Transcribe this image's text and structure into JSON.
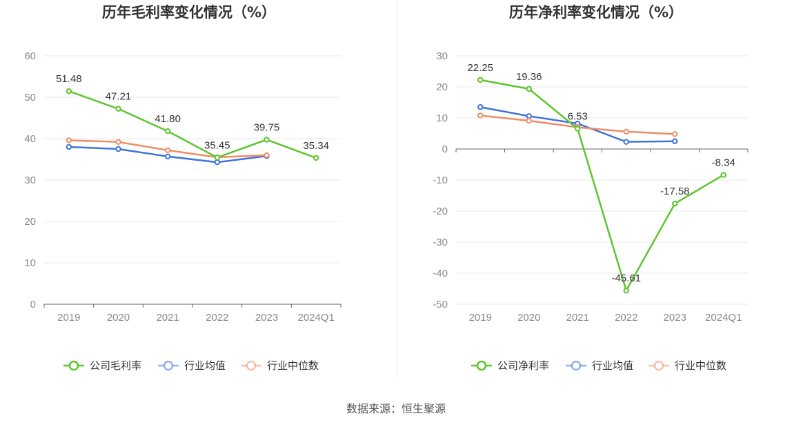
{
  "source": "数据来源：恒生聚源",
  "colors": {
    "company": "#5cc52c",
    "average": "#3e72dc",
    "median": "#f08c64",
    "grid": "#e6e8ef",
    "axis": "#666666"
  },
  "chart_data": [
    {
      "type": "line",
      "title": "历年毛利率变化情况（%）",
      "categories": [
        "2019",
        "2020",
        "2021",
        "2022",
        "2023",
        "2024Q1"
      ],
      "ylim": [
        0,
        60
      ],
      "yticks": [
        0,
        10,
        20,
        30,
        40,
        50,
        60
      ],
      "grid": true,
      "legend_position": "bottom",
      "series": [
        {
          "name": "公司毛利率",
          "key": "company",
          "values": [
            51.48,
            47.21,
            41.8,
            35.45,
            39.75,
            35.34
          ],
          "labels": [
            "51.48",
            "47.21",
            "41.80",
            "35.45",
            "39.75",
            "35.34"
          ]
        },
        {
          "name": "行业均值",
          "key": "average",
          "values": [
            38.0,
            37.5,
            35.7,
            34.3,
            35.8,
            null
          ]
        },
        {
          "name": "行业中位数",
          "key": "median",
          "values": [
            39.6,
            39.2,
            37.2,
            35.5,
            36.0,
            null
          ]
        }
      ]
    },
    {
      "type": "line",
      "title": "历年净利率变化情况（%）",
      "categories": [
        "2019",
        "2020",
        "2021",
        "2022",
        "2023",
        "2024Q1"
      ],
      "ylim": [
        -50,
        30
      ],
      "yticks": [
        -50,
        -40,
        -30,
        -20,
        -10,
        0,
        10,
        20,
        30
      ],
      "grid": true,
      "legend_position": "bottom",
      "series": [
        {
          "name": "公司净利率",
          "key": "company",
          "values": [
            22.25,
            19.36,
            6.53,
            -45.61,
            -17.58,
            -8.34
          ],
          "labels": [
            "22.25",
            "19.36",
            "6.53",
            "-45.61",
            "-17.58",
            "-8.34"
          ]
        },
        {
          "name": "行业均值",
          "key": "average",
          "values": [
            13.5,
            10.6,
            8.2,
            2.3,
            2.5,
            null
          ]
        },
        {
          "name": "行业中位数",
          "key": "median",
          "values": [
            10.8,
            9.1,
            7.0,
            5.6,
            4.8,
            null
          ]
        }
      ]
    }
  ]
}
